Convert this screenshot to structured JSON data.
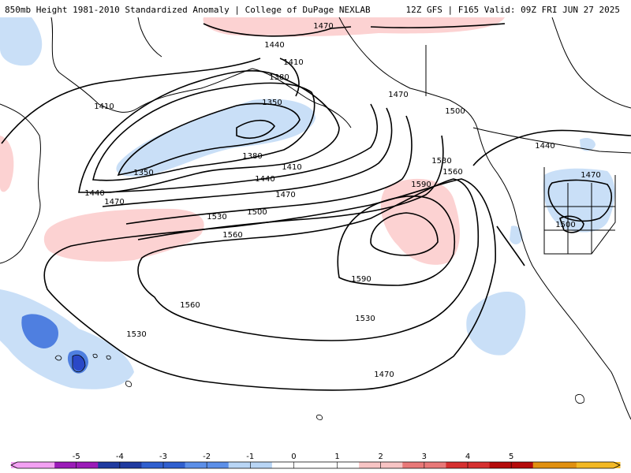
{
  "header": {
    "left": "850mb Height 1981-2010 Standardized Anomaly | College of DuPage NEXLAB",
    "right": "12Z GFS | F165 Valid: 09Z FRI JUN 27 2025"
  },
  "contour_labels": [
    "1470",
    "1440",
    "1410",
    "1380",
    "1350",
    "1470",
    "1500",
    "1530",
    "1560",
    "1590",
    "1350",
    "1380",
    "1410",
    "1440",
    "1470",
    "1410",
    "1440",
    "1470",
    "1500",
    "1530",
    "1560",
    "1590",
    "1560",
    "1530",
    "1530",
    "1470",
    "1440",
    "1470",
    "1500"
  ],
  "colorbar": {
    "ticks": [
      "-5",
      "-4",
      "-3",
      "-2",
      "-1",
      "0",
      "1",
      "2",
      "3",
      "4",
      "5"
    ],
    "colors": [
      "#f2a0f2",
      "#9b1bb8",
      "#1f3aa0",
      "#2f5fcf",
      "#5c8fe8",
      "#b8d5f5",
      "#ffffff",
      "#ffffff",
      "#f7c4c4",
      "#e87878",
      "#d63030",
      "#b50b0b",
      "#e09010",
      "#f2b824"
    ]
  },
  "anomaly_colors": {
    "pos_light": "#fcd2d2",
    "neg_light": "#c9dff7",
    "neg_mid": "#4f7fe0",
    "neg_strong": "#2a48c7"
  }
}
